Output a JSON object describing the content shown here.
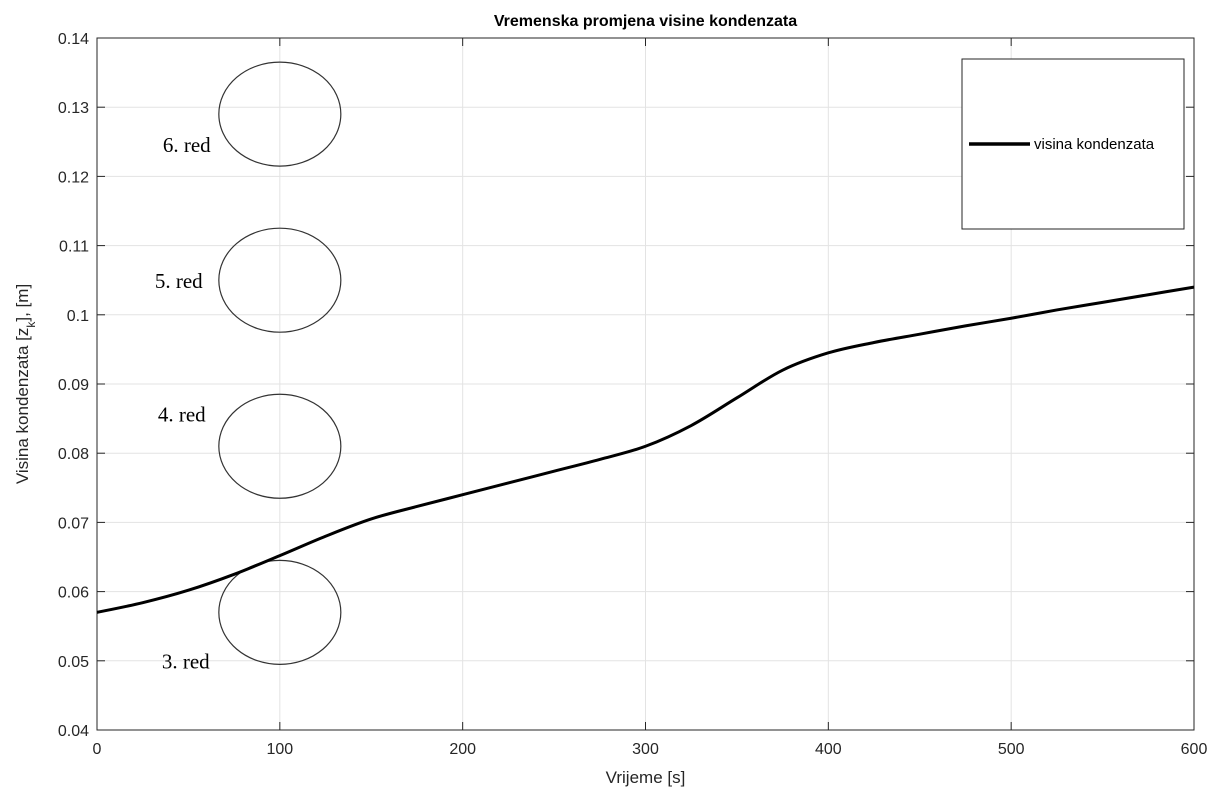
{
  "chart_data": {
    "type": "line",
    "title": "Vremenska promjena visine kondenzata",
    "xlabel": "Vrijeme [s]",
    "ylabel_main": "Visina kondenzata [z",
    "ylabel_sub": "k",
    "ylabel_tail": "], [m]",
    "xlim": [
      0,
      600
    ],
    "ylim": [
      0.04,
      0.14
    ],
    "xticks": [
      0,
      100,
      200,
      300,
      400,
      500,
      600
    ],
    "xtick_labels": [
      "0",
      "100",
      "200",
      "300",
      "400",
      "500",
      "600"
    ],
    "yticks": [
      0.04,
      0.05,
      0.06,
      0.07,
      0.08,
      0.09,
      0.1,
      0.11,
      0.12,
      0.13,
      0.14
    ],
    "ytick_labels": [
      "0.04",
      "0.05",
      "0.06",
      "0.07",
      "0.08",
      "0.09",
      "0.1",
      "0.11",
      "0.12",
      "0.13",
      "0.14"
    ],
    "grid": true,
    "legend_position": "top-right",
    "series": [
      {
        "name": "visina kondenzata",
        "color": "#000000",
        "x": [
          0,
          25,
          50,
          75,
          100,
          125,
          150,
          175,
          200,
          225,
          250,
          275,
          300,
          325,
          350,
          375,
          400,
          425,
          450,
          475,
          500,
          525,
          550,
          575,
          600
        ],
        "y": [
          0.057,
          0.0584,
          0.0602,
          0.0625,
          0.0652,
          0.068,
          0.0705,
          0.0723,
          0.074,
          0.0757,
          0.0774,
          0.0791,
          0.081,
          0.084,
          0.088,
          0.092,
          0.0945,
          0.096,
          0.0972,
          0.0984,
          0.0995,
          0.1007,
          0.1018,
          0.1029,
          0.104
        ]
      }
    ],
    "annotations": [
      {
        "label": "6. red",
        "x": 100,
        "y": 0.129
      },
      {
        "label": "5. red",
        "x": 100,
        "y": 0.105
      },
      {
        "label": "4. red",
        "x": 100,
        "y": 0.081
      },
      {
        "label": "3. red",
        "x": 100,
        "y": 0.057
      }
    ]
  }
}
